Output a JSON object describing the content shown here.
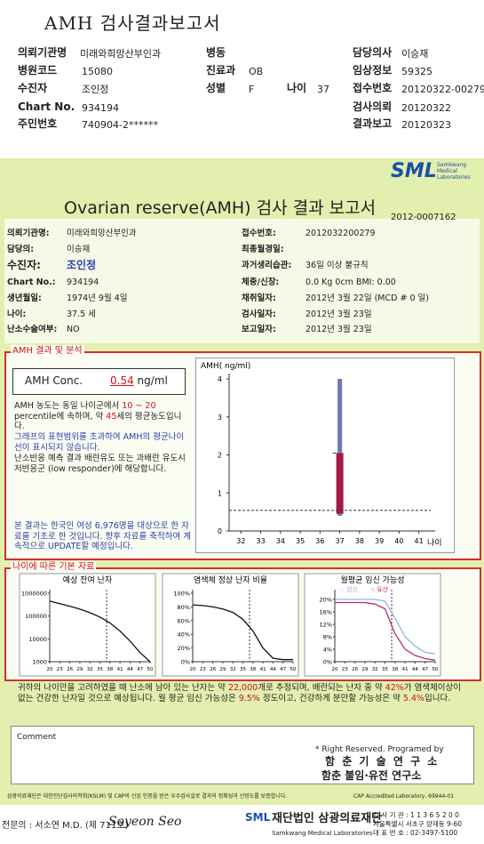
{
  "header": {
    "title": "AMH 검사결과보고서",
    "fields": [
      {
        "label": "의뢰기관명",
        "value": "미래와희망산부인과"
      },
      {
        "label": "병동"
      },
      {
        "label": "담당의사",
        "value": "이승재"
      },
      {
        "label": "병원코드",
        "value": "15080"
      },
      {
        "label": "진료과",
        "value": "OB"
      },
      {
        "label": "임상정보",
        "value": "59325"
      },
      {
        "label": "수진자",
        "value": "조인정"
      },
      {
        "label": "성별",
        "value": "F"
      },
      {
        "label": "나이",
        "value": "37"
      },
      {
        "label": "접수번호",
        "value": "20120322-00279"
      },
      {
        "label": "Chart No.",
        "value": "934194"
      },
      {
        "label": "검사의뢰",
        "value": "20120322"
      },
      {
        "label": "주민번호",
        "value": "740904-2******"
      },
      {
        "label": "결과보고",
        "value": "20120323"
      }
    ]
  },
  "logo": {
    "name": "SML",
    "sub": [
      "Samkwang",
      "Medical",
      "Laboratories"
    ]
  },
  "report": {
    "title": "Ovarian reserve(AMH) 검사 결과 보고서",
    "number": "2012-0007162",
    "fields": [
      {
        "label": "의뢰기관명:",
        "value": "미래와희망산부인과"
      },
      {
        "label": "담당의:",
        "value": "이승재"
      },
      {
        "label": "수진자:",
        "value": "조인정"
      },
      {
        "label": "Chart No.:",
        "value": "934194"
      },
      {
        "label": "생년월일:",
        "value": "1974년 9월 4일"
      },
      {
        "label": "나이:",
        "value": "37.5 세"
      },
      {
        "label": "난소수술여부:",
        "value": "NO"
      },
      {
        "label": "접수번호:",
        "value": "2012032200279"
      },
      {
        "label": "최종월경일:"
      },
      {
        "label": "과거생리습관:",
        "value": "36일 이상 불규칙"
      },
      {
        "label": "체중/신장:",
        "value": "0.0 Kg      0cm    BMI:  0.00"
      },
      {
        "label": "채취일자:",
        "value": "2012년 3월 22일   (MCD #  0 일)"
      },
      {
        "label": "검사일자:",
        "value": "2012년 3월 23일"
      },
      {
        "label": "보고일자:",
        "value": "2012년 3월 23일"
      }
    ]
  },
  "result": {
    "section": "AMH 결과 및 분석",
    "label": "AMH Conc.",
    "value": 0.54,
    "unit": " ng/ml",
    "p1": [
      "AMH 농도는 동일 나이군에서 ",
      "10 ~ 20",
      " percentile에 속하며, 약 ",
      "45",
      "세의 평균농도입니다.",
      "",
      ""
    ],
    "p2": "그래프의 표현범위를 초과하여 AMH의 평균나이선이 표시되지 않습니다.",
    "p3": "난소반응 예측 결과 배란유도 또는 과배란 유도시 저반응군 (low responder)에 해당합니다.",
    "p4": "본 결과는 한국인 여성 6,976명을 대상으로 한 자료를 기초로 한 것입니다. 향후 자료를 축적하여 계속적으로 UPDATE할 예정입니다."
  },
  "amh_chart": {
    "y_label": "AMH( ng/ml)",
    "x_label": "나이",
    "xlim": [
      31.4,
      41.6
    ],
    "ylim": [
      0,
      4
    ],
    "xticks": [
      32,
      33,
      34,
      35,
      36,
      37,
      38,
      39,
      40,
      41
    ],
    "yticks": [
      0,
      1,
      2,
      3,
      4
    ],
    "box_x": 37,
    "range": [
      0.4,
      4
    ],
    "box": [
      0.45,
      2.05
    ],
    "box_color": "#a8194a",
    "range_color": "#6a78b8"
  },
  "basic": {
    "section": "나이에 따른 기본 자료",
    "charts": [
      {
        "title": "예상 잔여 난자",
        "log": true,
        "ylim": [
          1000,
          1000000
        ],
        "yticks": [
          1000000,
          100000,
          10000,
          1000
        ],
        "xlim": [
          20,
          50
        ],
        "xticks": [
          20,
          23,
          26,
          29,
          32,
          35,
          38,
          41,
          44,
          47,
          50
        ],
        "marker_x": 37,
        "x": [
          20,
          23,
          26,
          29,
          32,
          35,
          38,
          41,
          44,
          47,
          50
        ],
        "series": [
          {
            "color": "#111",
            "values": [
              450000,
              350000,
              270000,
              200000,
              140000,
              90000,
              50000,
              22000,
              8000,
              2500,
              1000
            ]
          }
        ]
      },
      {
        "title": "염색체 정상 난자 비율",
        "ylim": [
          0,
          100
        ],
        "yticks": [
          {
            "value": 100,
            "label": "100%"
          },
          {
            "value": 80,
            "label": "80%"
          },
          {
            "value": 60,
            "label": "60%"
          },
          {
            "value": 40,
            "label": "40%"
          },
          {
            "value": 20,
            "label": "20%"
          },
          {
            "value": 0,
            "label": "0%"
          }
        ],
        "xlim": [
          20,
          50
        ],
        "xticks": [
          20,
          23,
          26,
          29,
          32,
          35,
          38,
          41,
          44,
          47,
          50
        ],
        "marker_x": 37,
        "x": [
          20,
          23,
          26,
          29,
          32,
          35,
          38,
          41,
          44,
          47,
          50
        ],
        "series": [
          {
            "color": "#111",
            "values": [
              83,
              82,
              80,
              77,
              72,
              62,
              45,
              20,
              5,
              3,
              3
            ]
          }
        ]
      },
      {
        "title": "월평균 임신 가능성",
        "ylim": [
          0,
          22
        ],
        "yticks": [
          {
            "value": 20,
            "label": "20%"
          },
          {
            "value": 16,
            "label": "16%"
          },
          {
            "value": 12,
            "label": "12%"
          },
          {
            "value": 8,
            "label": "8%"
          },
          {
            "value": 4,
            "label": "4%"
          },
          {
            "value": 0,
            "label": "0%"
          }
        ],
        "xlim": [
          20,
          50
        ],
        "xticks": [
          20,
          23,
          26,
          29,
          32,
          35,
          38,
          41,
          44,
          47,
          50
        ],
        "marker_x": 37,
        "x": [
          20,
          23,
          26,
          29,
          32,
          35,
          38,
          41,
          44,
          47,
          50
        ],
        "series": [
          {
            "name": "-: 임신",
            "color": "#8fb3e6",
            "values": [
              20,
              20,
              20,
              20,
              20,
              19.5,
              14,
              8,
              5,
              3,
              2.5
            ]
          },
          {
            "name": "-: 유산",
            "color": "#c0286a",
            "values": [
              19,
              19,
              19,
              19,
              18.5,
              17,
              9,
              4,
              2,
              1,
              0.5
            ]
          }
        ]
      }
    ]
  },
  "summary": [
    "귀하의 나이만을 고려하였을 때 난소에 남아 있는 난자는 약 ",
    "22,000",
    "개로 추정되며, 배란되는 난자 중 약 ",
    "42%",
    "가 염색체이상이 없는 건강한 난자일 것으로 예상됩니다. 월 평균 임신 가능성은 ",
    "9.5%",
    " 정도이고, 건강하게 분만할 가능성은 약 ",
    "5.4%",
    "입니다."
  ],
  "comment": {
    "label": "Comment"
  },
  "credit": {
    "rights": "* Right Reserved. Programed by",
    "lab": "함 춘 기 술 연 구 소",
    "institute": "함춘 불임·유전 연구소"
  },
  "footer": {
    "note": "삼광의료재단은 대한진단검사의학회(KSLM) 및 CAP의 신임 인증을 받은 우수검사실로 결과의 정확성과 신빙도를 보증합니다.",
    "cap": "CAP  Accredited  Laboratory,  69944-01",
    "doctor": "전문의 : 서소연 M.D. (제 711호)",
    "signature": "Soyeon Seo",
    "foundation": "재단법인 삼광의료재단",
    "foundation_en": "Samkwang Medical Laboratories",
    "contact": [
      "검 사 기 관 : 1 1 3 6 5 2 0 0",
      "서울특별시 서초구 양재동 9-60",
      "대 표 번 호 : 02-3497-5100"
    ]
  }
}
